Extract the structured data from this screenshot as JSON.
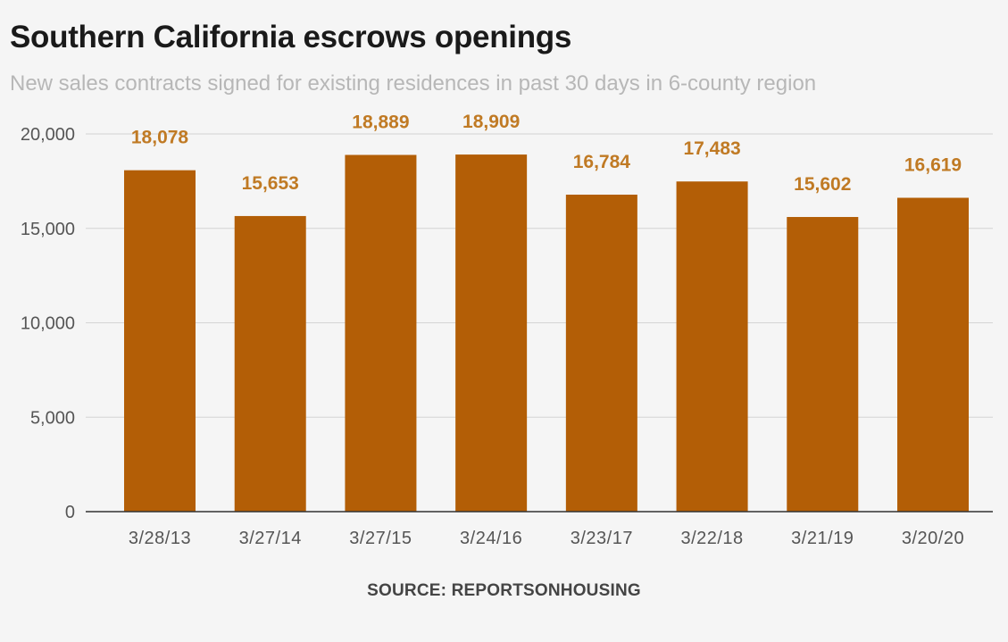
{
  "chart_data": {
    "type": "bar",
    "title": "Southern California escrows openings",
    "subtitle": "New sales contracts signed for existing residences in past 30 days in 6-county region",
    "categories": [
      "3/28/13",
      "3/27/14",
      "3/27/15",
      "3/24/16",
      "3/23/17",
      "3/22/18",
      "3/21/19",
      "3/20/20"
    ],
    "values": [
      18078,
      15653,
      18889,
      18909,
      16784,
      17483,
      15602,
      16619
    ],
    "value_labels": [
      "18,078",
      "15,653",
      "18,889",
      "18,909",
      "16,784",
      "17,483",
      "15,602",
      "16,619"
    ],
    "y_ticks": [
      0,
      5000,
      10000,
      15000,
      20000
    ],
    "y_tick_labels": [
      "0",
      "5,000",
      "10,000",
      "15,000",
      "20,000"
    ],
    "ylim": [
      0,
      20000
    ],
    "xlabel": "",
    "ylabel": "",
    "grid": true,
    "legend": "none",
    "bar_color": "#b35e06",
    "label_color": "#c07a24",
    "source": "SOURCE: REPORTSONHOUSING"
  }
}
